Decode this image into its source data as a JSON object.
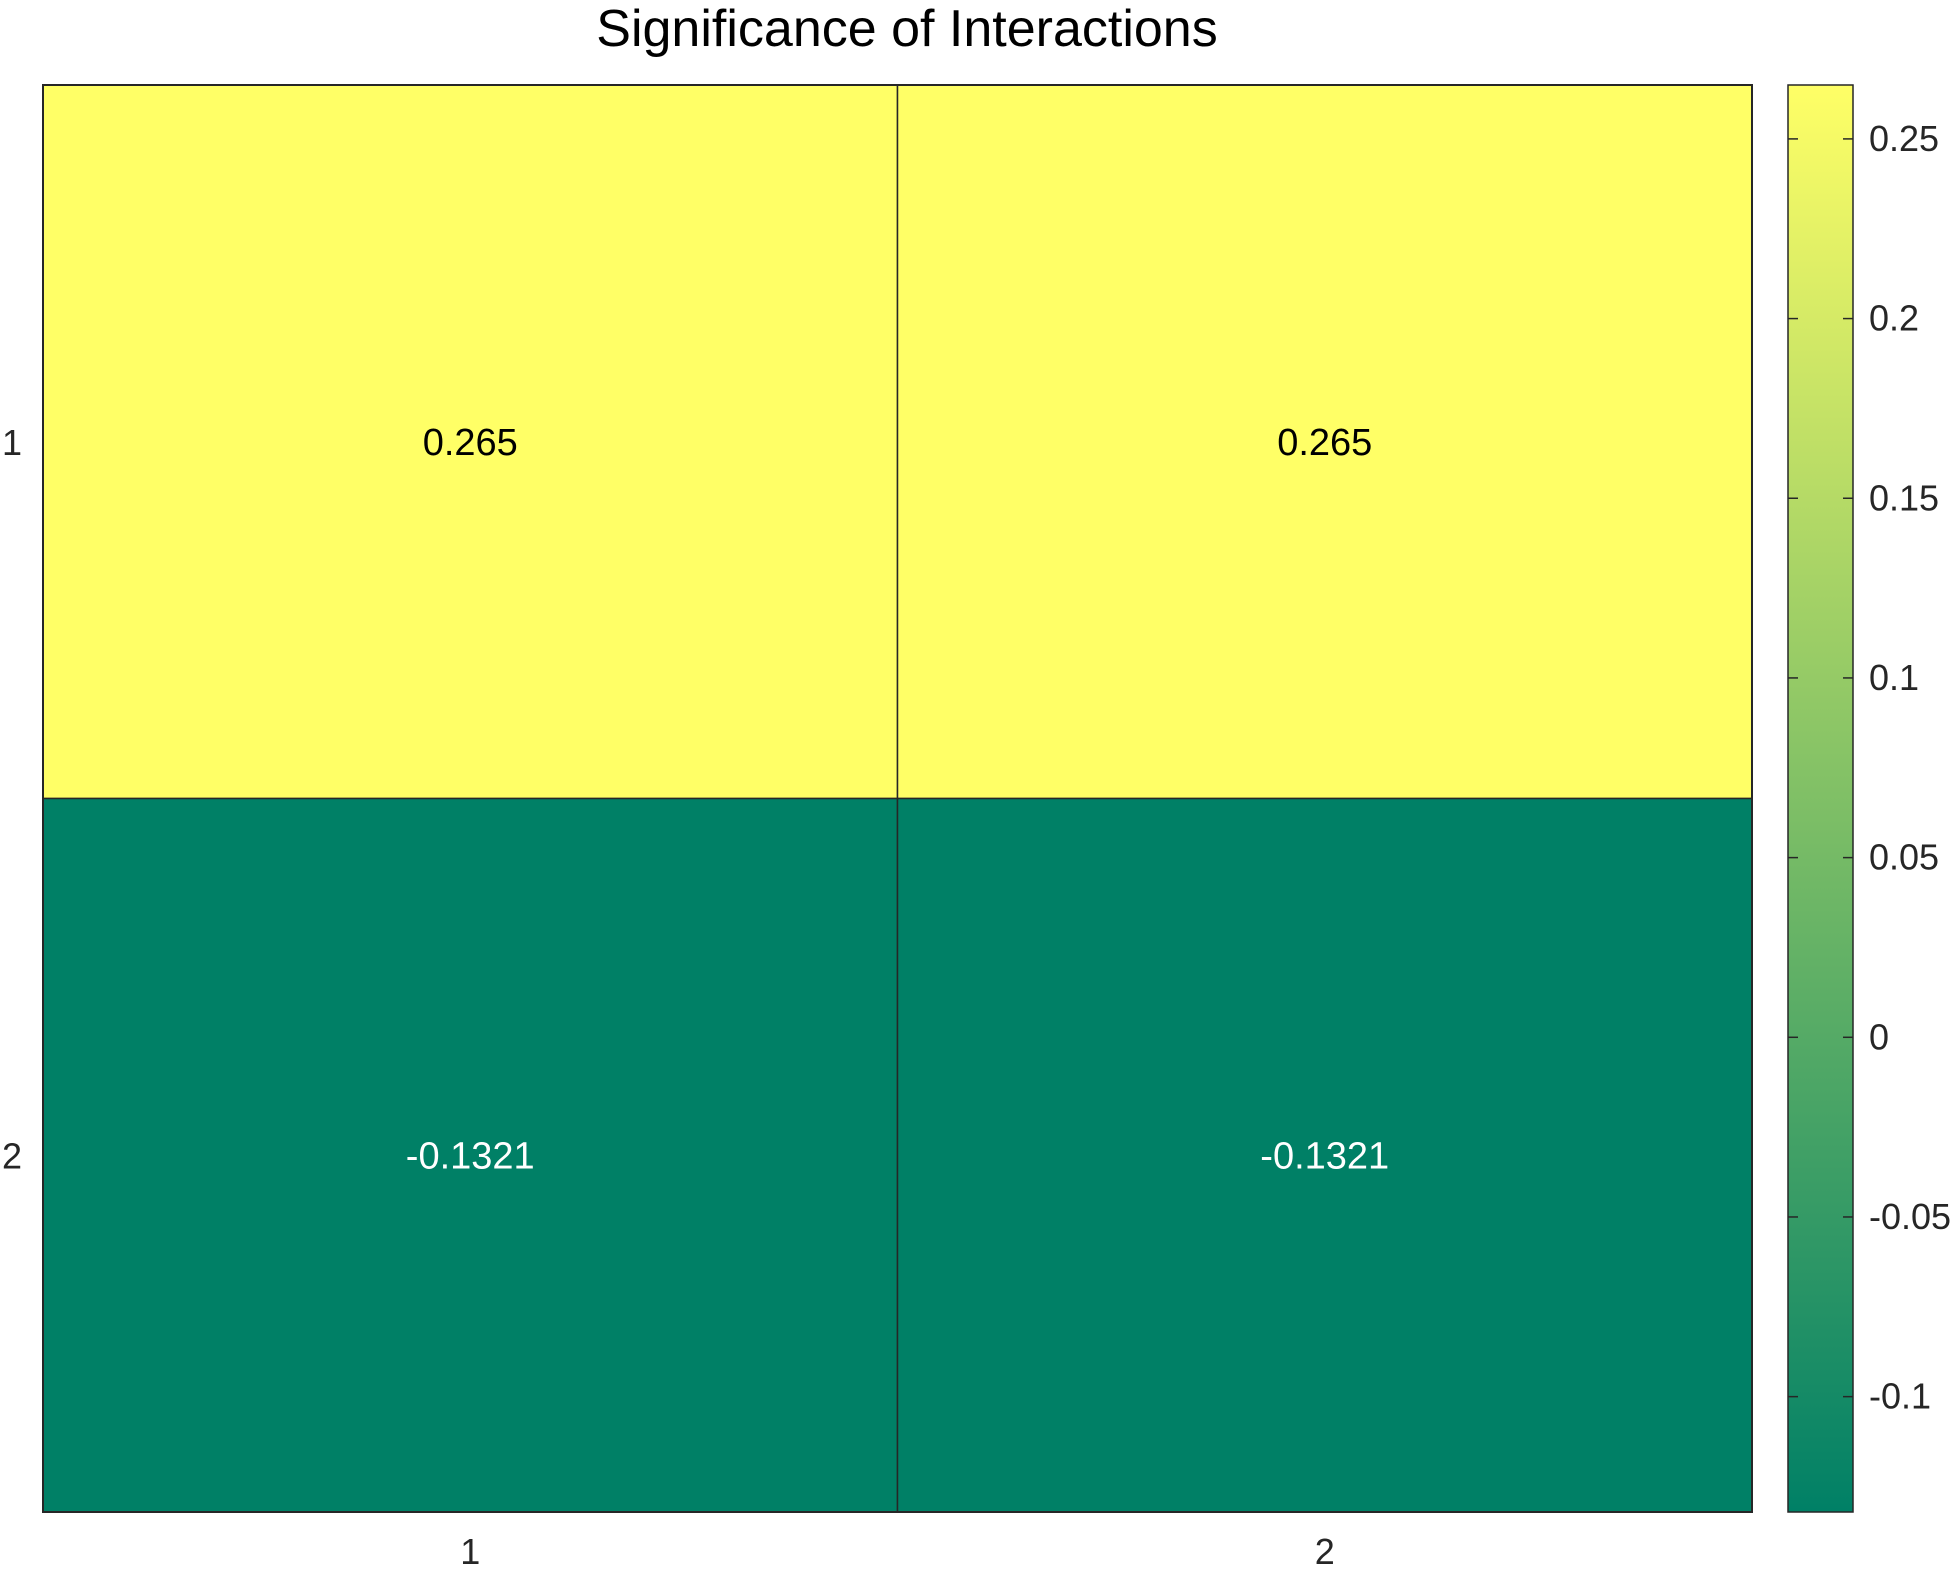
{
  "chart_data": {
    "type": "heatmap",
    "title": "Significance of Interactions",
    "x_categories": [
      "1",
      "2"
    ],
    "y_categories": [
      "1",
      "2"
    ],
    "values": [
      [
        0.265,
        0.265
      ],
      [
        -0.1321,
        -0.1321
      ]
    ],
    "cell_labels": [
      [
        "0.265",
        "0.265"
      ],
      [
        "-0.1321",
        "-0.1321"
      ]
    ],
    "colormap": "summer",
    "colormap_stops": [
      "#008066",
      "#ffff66"
    ],
    "colorbar": {
      "range": [
        -0.1321,
        0.265
      ],
      "ticks": [
        -0.1,
        -0.05,
        0,
        0.05,
        0.1,
        0.15,
        0.2,
        0.25
      ],
      "tick_labels": [
        "-0.1",
        "-0.05",
        "0",
        "0.05",
        "0.1",
        "0.15",
        "0.2",
        "0.25"
      ]
    },
    "grid": true,
    "xlabel": "",
    "ylabel": ""
  }
}
